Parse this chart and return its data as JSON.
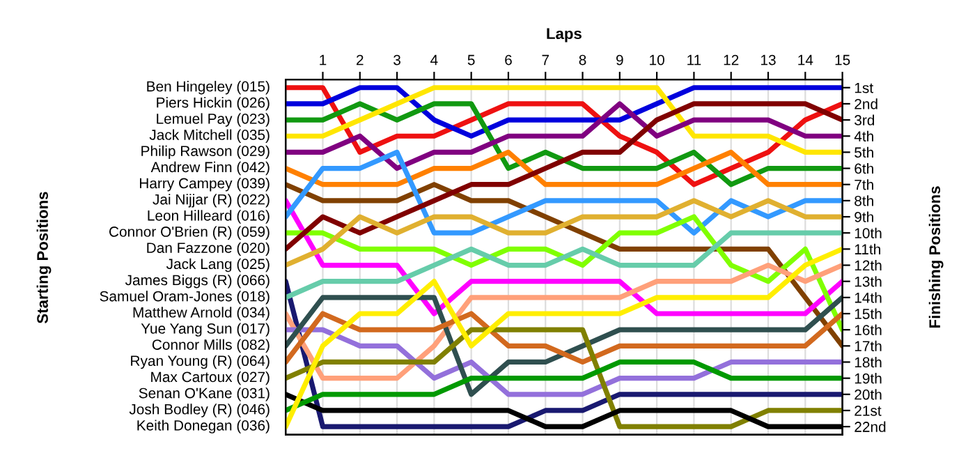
{
  "chart_data": {
    "type": "line",
    "xlabel": "Laps",
    "annotations": [
      "Starting Positions"
    ],
    "y2label": "Finishing Positions",
    "x": [
      0,
      1,
      2,
      3,
      4,
      5,
      6,
      7,
      8,
      9,
      10,
      11,
      12,
      13,
      14,
      15
    ],
    "xlim": [
      0,
      15
    ],
    "xticks": [
      1,
      2,
      3,
      4,
      5,
      6,
      7,
      8,
      9,
      10,
      11,
      12,
      13,
      14,
      15
    ],
    "y2lim": [
      22.5,
      0.5
    ],
    "y2ticks": [
      {
        "value": 1,
        "label": "1st"
      },
      {
        "value": 2,
        "label": "2nd"
      },
      {
        "value": 3,
        "label": "3rd"
      },
      {
        "value": 4,
        "label": "4th"
      },
      {
        "value": 5,
        "label": "5th"
      },
      {
        "value": 6,
        "label": "6th"
      },
      {
        "value": 7,
        "label": "7th"
      },
      {
        "value": 8,
        "label": "8th"
      },
      {
        "value": 9,
        "label": "9th"
      },
      {
        "value": 10,
        "label": "10th"
      },
      {
        "value": 11,
        "label": "11th"
      },
      {
        "value": 12,
        "label": "12th"
      },
      {
        "value": 13,
        "label": "13th"
      },
      {
        "value": 14,
        "label": "14th"
      },
      {
        "value": 15,
        "label": "15th"
      },
      {
        "value": 16,
        "label": "16th"
      },
      {
        "value": 17,
        "label": "17th"
      },
      {
        "value": 18,
        "label": "18th"
      },
      {
        "value": 19,
        "label": "19th"
      },
      {
        "value": 20,
        "label": "20th"
      },
      {
        "value": 21,
        "label": "21st"
      },
      {
        "value": 22,
        "label": "22nd"
      }
    ],
    "grid": true,
    "series": [
      {
        "name": "Ben Hingeley (015)",
        "axis": "y2",
        "color": "#ee1111",
        "values": [
          1,
          1,
          5,
          4,
          4,
          3,
          2,
          2,
          2,
          4,
          5,
          7,
          6,
          5,
          3,
          2
        ]
      },
      {
        "name": "Piers Hickin (026)",
        "axis": "y2",
        "color": "#0000dd",
        "values": [
          2,
          2,
          1,
          1,
          3,
          4,
          3,
          3,
          3,
          3,
          2,
          1,
          1,
          1,
          1,
          1
        ]
      },
      {
        "name": "Lemuel Pay (023)",
        "axis": "y2",
        "color": "#119911",
        "values": [
          3,
          3,
          2,
          3,
          2,
          2,
          6,
          5,
          6,
          6,
          6,
          5,
          7,
          6,
          6,
          6
        ]
      },
      {
        "name": "Jack Mitchell (035)",
        "axis": "y2",
        "color": "#ffe600",
        "values": [
          4,
          4,
          3,
          2,
          1,
          1,
          1,
          1,
          1,
          1,
          1,
          4,
          4,
          4,
          5,
          5
        ]
      },
      {
        "name": "Philip Rawson (029)",
        "axis": "y2",
        "color": "#800080",
        "values": [
          5,
          5,
          4,
          6,
          5,
          5,
          4,
          4,
          4,
          2,
          4,
          3,
          3,
          3,
          4,
          4
        ]
      },
      {
        "name": "Andrew Finn (042)",
        "axis": "y2",
        "color": "#ff8000",
        "values": [
          6,
          7,
          7,
          7,
          6,
          6,
          5,
          7,
          7,
          7,
          7,
          6,
          5,
          7,
          7,
          7
        ]
      },
      {
        "name": "Harry Campey (039)",
        "axis": "y2",
        "color": "#804000",
        "values": [
          7,
          8,
          8,
          8,
          7,
          8,
          8,
          9,
          10,
          11,
          11,
          11,
          11,
          11,
          14,
          17
        ]
      },
      {
        "name": "Jai Nijjar (R) (022)",
        "axis": "y2",
        "color": "#ff00ff",
        "values": [
          8,
          12,
          12,
          12,
          15,
          13,
          13,
          13,
          13,
          13,
          15,
          15,
          15,
          15,
          15,
          13
        ]
      },
      {
        "name": "Leon Hilleard (016)",
        "axis": "y2",
        "color": "#3399ff",
        "values": [
          9,
          6,
          6,
          5,
          10,
          10,
          9,
          8,
          8,
          8,
          8,
          10,
          8,
          9,
          8,
          8
        ]
      },
      {
        "name": "Connor O'Brien (R) (059)",
        "axis": "y2",
        "color": "#80ff00",
        "values": [
          10,
          10,
          11,
          11,
          11,
          12,
          11,
          11,
          12,
          10,
          10,
          9,
          12,
          13,
          11,
          16
        ]
      },
      {
        "name": "Dan Fazzone (020)",
        "axis": "y2",
        "color": "#800000",
        "values": [
          11,
          9,
          10,
          9,
          8,
          7,
          7,
          6,
          5,
          5,
          3,
          2,
          2,
          2,
          2,
          3
        ]
      },
      {
        "name": "Jack Lang (025)",
        "axis": "y2",
        "color": "#e0b030",
        "values": [
          12,
          11,
          9,
          10,
          9,
          9,
          10,
          10,
          9,
          9,
          9,
          8,
          9,
          8,
          9,
          9
        ]
      },
      {
        "name": "James Biggs (R) (066)",
        "axis": "y2",
        "color": "#191970",
        "values": [
          13,
          22,
          22,
          22,
          22,
          22,
          22,
          21,
          21,
          20,
          20,
          20,
          20,
          20,
          20,
          20
        ]
      },
      {
        "name": "Samuel Oram-Jones (018)",
        "axis": "y2",
        "color": "#66ccaa",
        "values": [
          14,
          13,
          13,
          13,
          12,
          11,
          12,
          12,
          11,
          12,
          12,
          12,
          10,
          10,
          10,
          10
        ]
      },
      {
        "name": "Matthew Arnold (034)",
        "axis": "y2",
        "color": "#ffa07a",
        "values": [
          15,
          19,
          19,
          19,
          17,
          14,
          14,
          14,
          14,
          14,
          13,
          13,
          13,
          12,
          13,
          12
        ]
      },
      {
        "name": "Yue Yang Sun (017)",
        "axis": "y2",
        "color": "#9370db",
        "values": [
          16,
          16,
          17,
          17,
          19,
          18,
          20,
          20,
          20,
          19,
          19,
          19,
          18,
          18,
          18,
          18
        ]
      },
      {
        "name": "Connor Mills (082)",
        "axis": "y2",
        "color": "#2f4f4f",
        "values": [
          17,
          14,
          14,
          14,
          14,
          20,
          18,
          18,
          17,
          16,
          16,
          16,
          16,
          16,
          16,
          14
        ]
      },
      {
        "name": "Ryan Young (R) (064)",
        "axis": "y2",
        "color": "#d2691e",
        "values": [
          18,
          15,
          16,
          16,
          16,
          15,
          17,
          17,
          18,
          17,
          17,
          17,
          17,
          17,
          17,
          15
        ]
      },
      {
        "name": "Max Cartoux (027)",
        "axis": "y2",
        "color": "#808000",
        "values": [
          19,
          18,
          18,
          18,
          18,
          16,
          16,
          16,
          16,
          22,
          22,
          22,
          22,
          21,
          21,
          21
        ]
      },
      {
        "name": "Senan O'Kane (031)",
        "axis": "y2",
        "color": "#000000",
        "values": [
          20,
          21,
          21,
          21,
          21,
          21,
          21,
          22,
          22,
          21,
          21,
          21,
          21,
          22,
          22,
          22
        ]
      },
      {
        "name": "Josh Bodley (R) (046)",
        "axis": "y2",
        "color": "#009900",
        "values": [
          21,
          20,
          20,
          20,
          20,
          19,
          19,
          19,
          19,
          18,
          18,
          18,
          19,
          19,
          19,
          19
        ]
      },
      {
        "name": "Keith Donegan (036)",
        "axis": "y2",
        "color": "#ffee00",
        "values": [
          22,
          17,
          15,
          15,
          13,
          17,
          15,
          15,
          15,
          15,
          14,
          14,
          14,
          14,
          12,
          11
        ]
      }
    ]
  }
}
